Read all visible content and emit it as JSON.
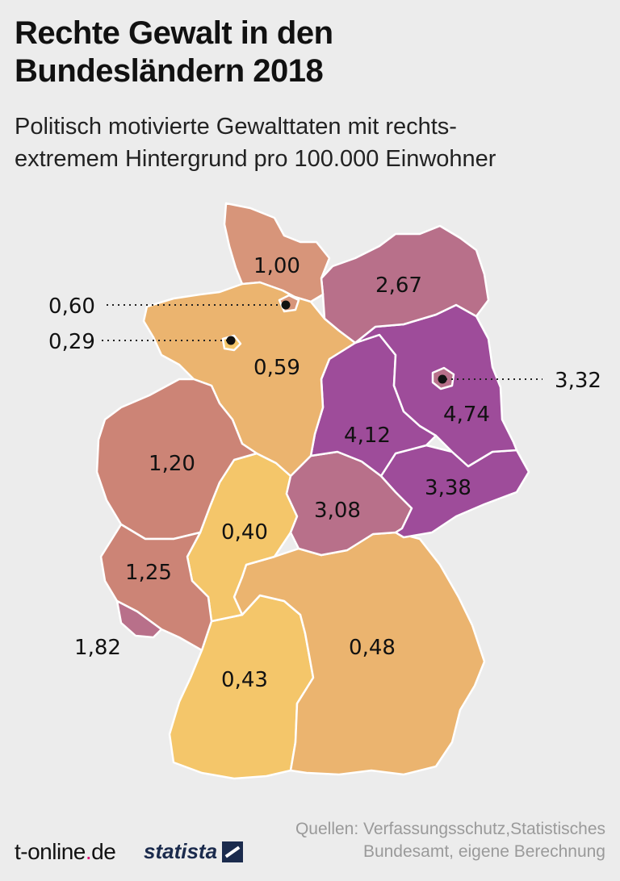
{
  "title": {
    "line1": "Rechte Gewalt in den",
    "line2": "Bundesländern 2018"
  },
  "subtitle": {
    "line1": "Politisch motivierte Gewalttaten mit rechts-",
    "line2": "extremem Hintergrund pro 100.000 Einwohner"
  },
  "map_values": {
    "schleswig_holstein": "1,00",
    "mecklenburg_vorpommern": "2,67",
    "hamburg": "0,60",
    "bremen": "0,29",
    "niedersachsen": "0,59",
    "berlin": "3,32",
    "brandenburg": "4,74",
    "sachsen_anhalt": "4,12",
    "nordrhein_westfalen": "1,20",
    "sachsen": "3,38",
    "thueringen": "3,08",
    "hessen": "0,40",
    "rheinland_pfalz": "1,25",
    "saarland": "1,82",
    "bayern": "0,48",
    "baden_wuerttemberg": "0,43"
  },
  "colors": {
    "background": "#ececec",
    "low": "#f4c66a",
    "low_mid": "#ebb46f",
    "mid_low": "#e8a570",
    "mid": "#d7957a",
    "mid_high": "#cc8476",
    "high": "#b8708a",
    "very_high": "#9e4c9a",
    "border": "#ffffff"
  },
  "sources": {
    "line1": "Quellen: Verfassungsschutz,Statistisches",
    "line2": "Bundesamt, eigene Berechnung"
  },
  "brands": {
    "tonline_main": "t-online",
    "tonline_dot": ".",
    "tonline_suffix": "de",
    "statista": "statista"
  }
}
